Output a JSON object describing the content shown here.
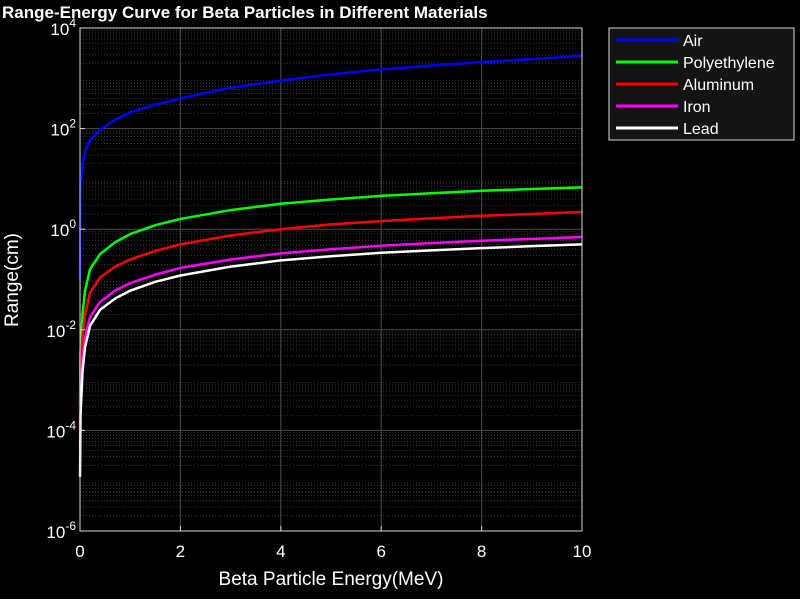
{
  "chart_data": {
    "type": "line",
    "title": "Range-Energy Curve for Beta Particles in Different Materials",
    "xlabel": "Beta Particle Energy(MeV)",
    "ylabel": "Range(cm)",
    "xlim": [
      0,
      10
    ],
    "ylim": [
      1e-06,
      10000
    ],
    "yscale": "log",
    "grid": true,
    "legend_position": "outside-top-right",
    "x_ticks": [
      {
        "value": 0,
        "label": "0"
      },
      {
        "value": 2,
        "label": "2"
      },
      {
        "value": 4,
        "label": "4"
      },
      {
        "value": 6,
        "label": "6"
      },
      {
        "value": 8,
        "label": "8"
      },
      {
        "value": 10,
        "label": "10"
      }
    ],
    "y_ticks": [
      {
        "value": 1e-06,
        "base": "10",
        "exp": "-6"
      },
      {
        "value": 0.0001,
        "base": "10",
        "exp": "-4"
      },
      {
        "value": 0.01,
        "base": "10",
        "exp": "-2"
      },
      {
        "value": 1,
        "base": "10",
        "exp": "0"
      },
      {
        "value": 100,
        "base": "10",
        "exp": "2"
      },
      {
        "value": 10000,
        "base": "10",
        "exp": "4"
      }
    ],
    "series": [
      {
        "name": "Air",
        "color": "#0000ff",
        "x": [
          0.001,
          0.01,
          0.05,
          0.1,
          0.2,
          0.4,
          0.7,
          1,
          1.5,
          2,
          3,
          4,
          5,
          6,
          7,
          8,
          9,
          10
        ],
        "y": [
          0.1,
          6,
          20,
          35,
          60,
          95,
          150,
          210,
          300,
          400,
          650,
          900,
          1200,
          1500,
          1800,
          2100,
          2400,
          2800
        ]
      },
      {
        "name": "Polyethylene",
        "color": "#00ff00",
        "x": [
          0.001,
          0.01,
          0.05,
          0.1,
          0.2,
          0.4,
          0.7,
          1,
          1.5,
          2,
          3,
          4,
          5,
          6,
          7,
          8,
          9,
          10
        ],
        "y": [
          0.0003,
          0.0035,
          0.02,
          0.06,
          0.16,
          0.32,
          0.55,
          0.8,
          1.2,
          1.6,
          2.4,
          3.2,
          3.9,
          4.6,
          5.2,
          5.8,
          6.3,
          6.8
        ]
      },
      {
        "name": "Aluminum",
        "color": "#ff0000",
        "x": [
          0.001,
          0.01,
          0.05,
          0.1,
          0.2,
          0.4,
          0.7,
          1,
          1.5,
          2,
          3,
          4,
          5,
          6,
          7,
          8,
          9,
          10
        ],
        "y": [
          0.0001,
          0.0012,
          0.007,
          0.02,
          0.055,
          0.11,
          0.18,
          0.25,
          0.37,
          0.5,
          0.75,
          1.0,
          1.25,
          1.45,
          1.65,
          1.85,
          2.0,
          2.2
        ]
      },
      {
        "name": "Iron",
        "color": "#ff00ff",
        "x": [
          0.001,
          0.01,
          0.05,
          0.1,
          0.2,
          0.4,
          0.7,
          1,
          1.5,
          2,
          3,
          4,
          5,
          6,
          7,
          8,
          9,
          10
        ],
        "y": [
          4e-05,
          0.0004,
          0.0025,
          0.007,
          0.018,
          0.036,
          0.06,
          0.085,
          0.125,
          0.17,
          0.25,
          0.33,
          0.4,
          0.47,
          0.53,
          0.59,
          0.64,
          0.7
        ]
      },
      {
        "name": "Lead",
        "color": "#ffffff",
        "x": [
          0.001,
          0.01,
          0.05,
          0.1,
          0.2,
          0.4,
          0.7,
          1,
          1.5,
          2,
          3,
          4,
          5,
          6,
          7,
          8,
          9,
          10
        ],
        "y": [
          1.2e-05,
          0.0002,
          0.0015,
          0.0045,
          0.012,
          0.025,
          0.042,
          0.06,
          0.09,
          0.12,
          0.18,
          0.24,
          0.29,
          0.34,
          0.38,
          0.42,
          0.46,
          0.5
        ]
      }
    ]
  }
}
